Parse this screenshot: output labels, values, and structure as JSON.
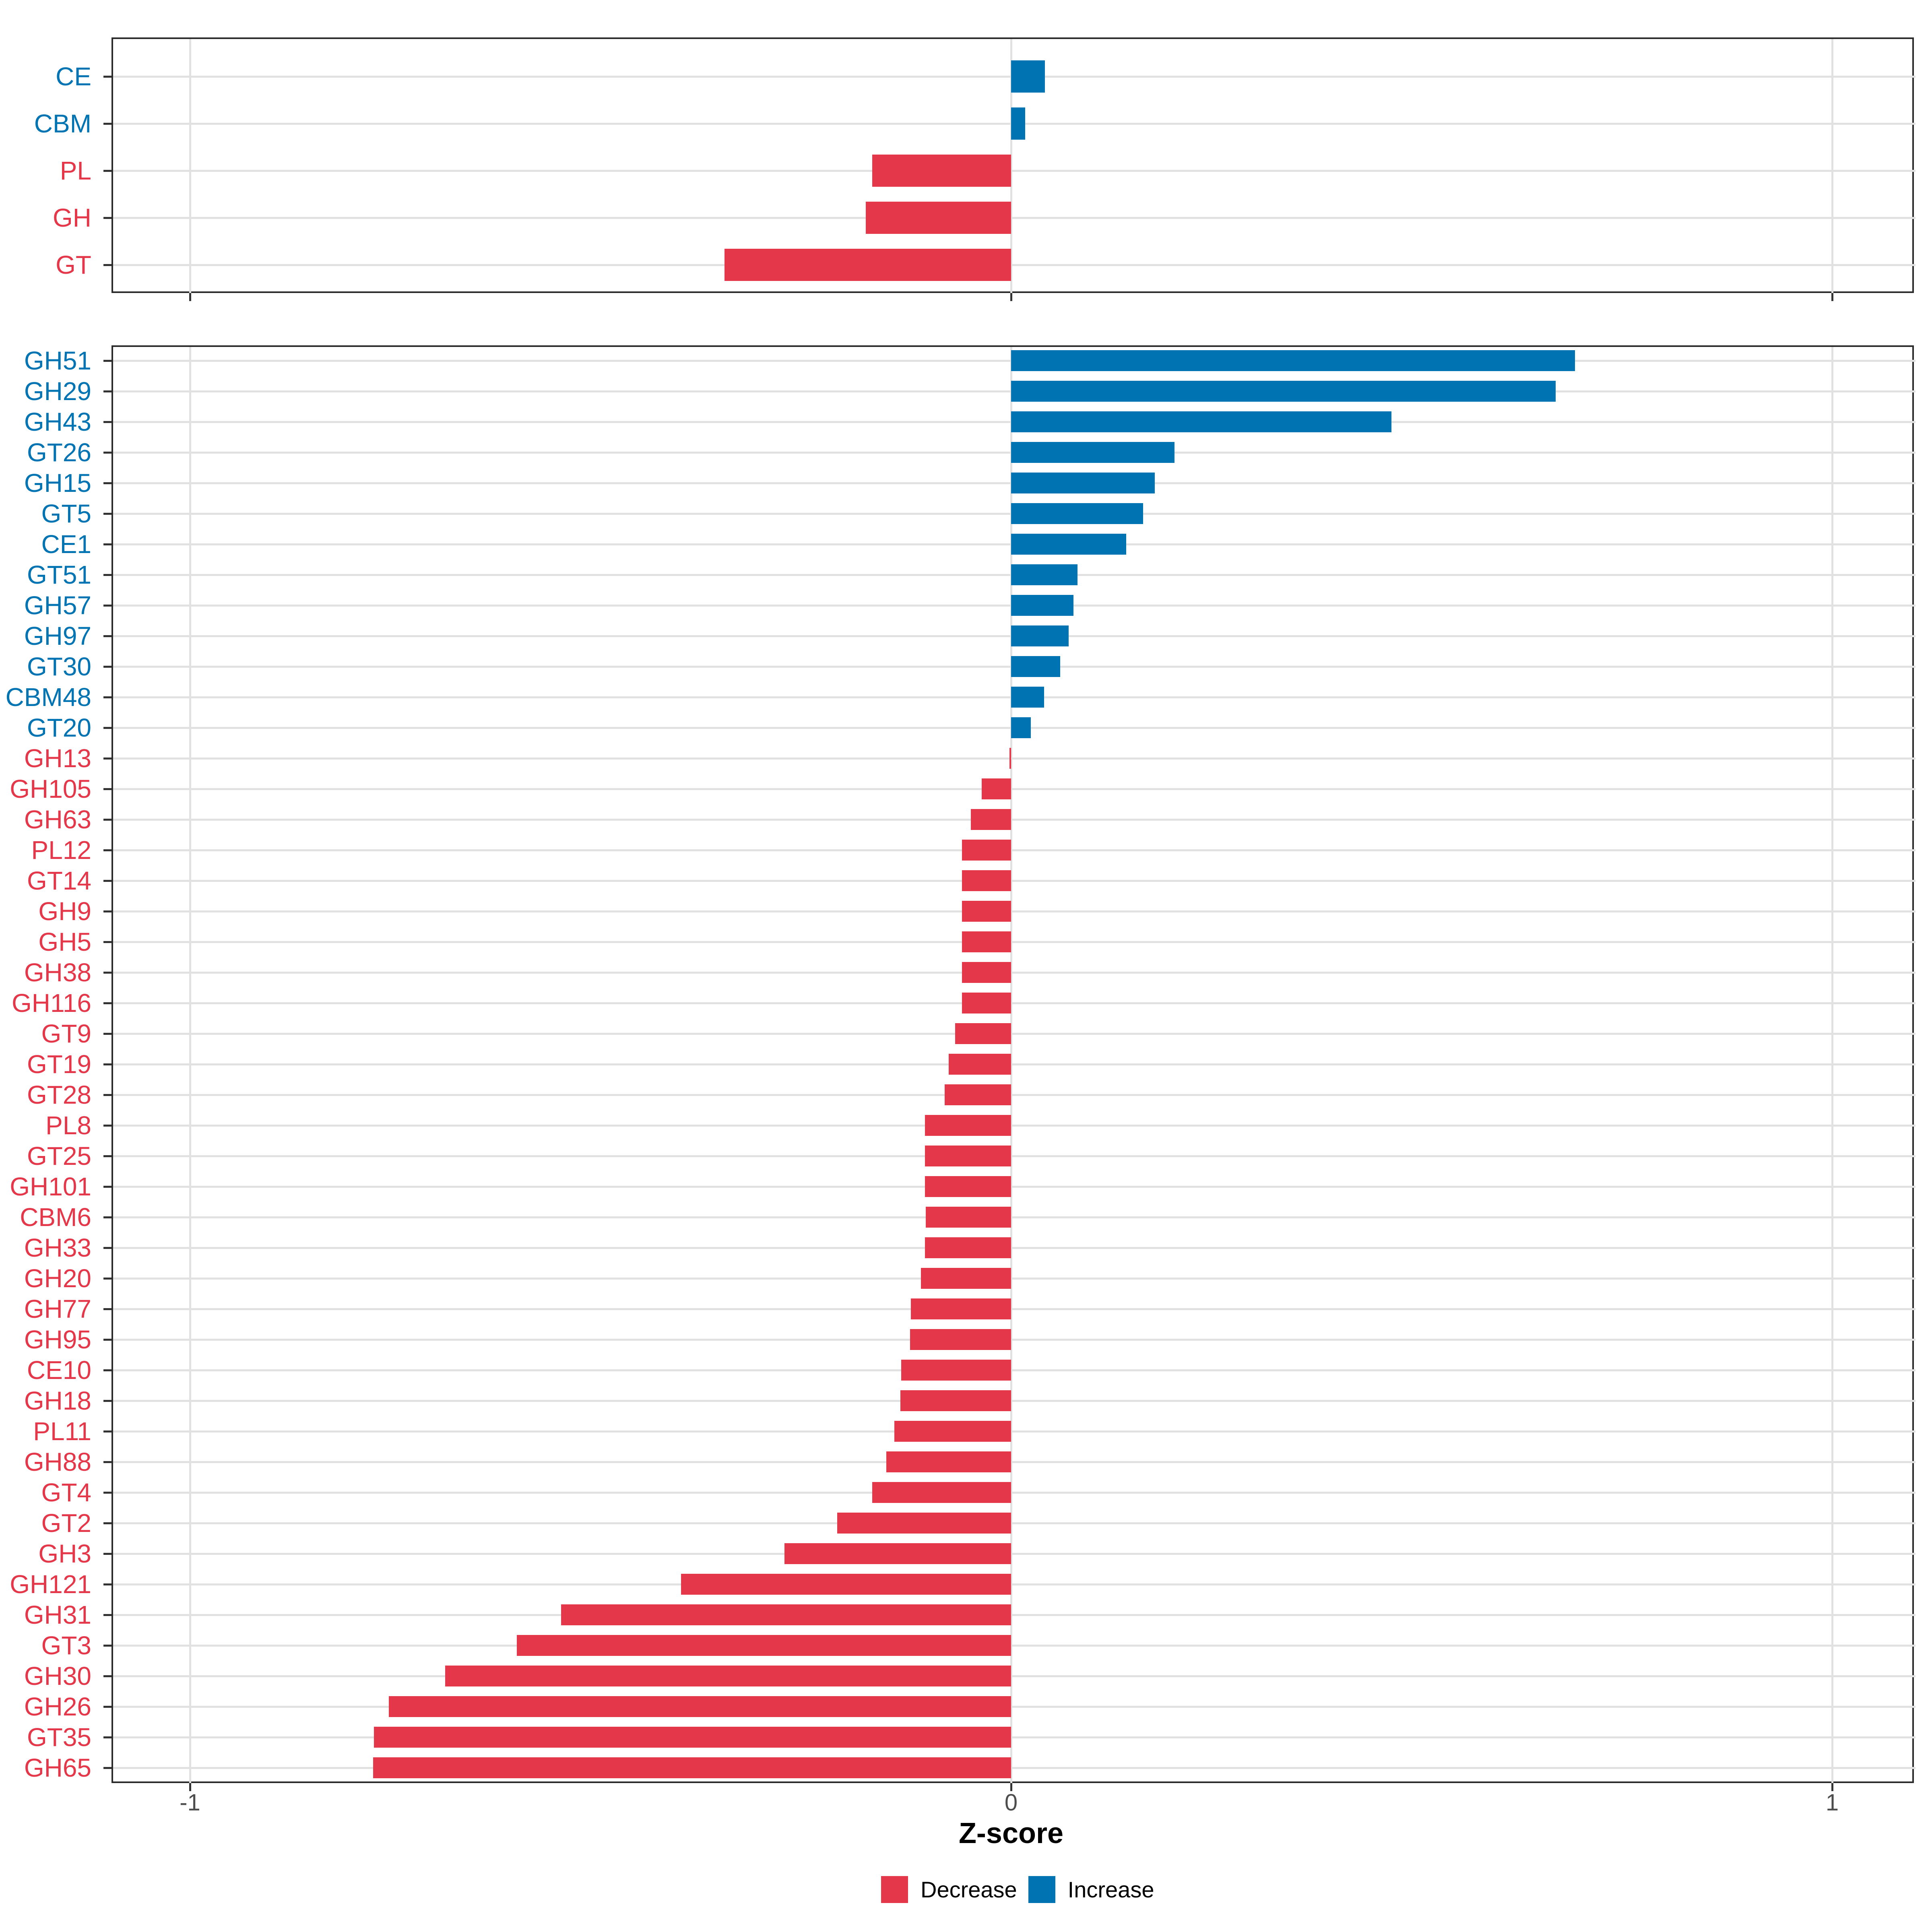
{
  "axis": {
    "title": "Z-score",
    "tick_values": [
      -1,
      0,
      1
    ],
    "tick_labels": [
      "-1",
      "0",
      "1"
    ]
  },
  "legend": {
    "items": [
      {
        "label": "Decrease",
        "color": "#e4384a",
        "direction": "Decrease"
      },
      {
        "label": "Increase",
        "color": "#0074b3",
        "direction": "Increase"
      }
    ]
  },
  "colors": {
    "increase": "#0074b3",
    "decrease": "#e4384a",
    "grid": "#e1e1e1",
    "panel_border": "#2b2b2b",
    "tick": "#333333",
    "tick_label": "#4d4d4d",
    "axis_title": "#000000"
  },
  "chart_data": [
    {
      "type": "bar",
      "orientation": "horizontal",
      "panel": "cazyme-class-summary",
      "xlabel": "Z-score",
      "xlim": [
        -1.1,
        1.1
      ],
      "grid": "on",
      "legend_position": "bottom",
      "categories": [
        "CE",
        "CBM",
        "PL",
        "GH",
        "GT"
      ],
      "values": [
        0.041,
        0.017,
        -0.169,
        -0.177,
        -0.349
      ],
      "directions": [
        "Increase",
        "Increase",
        "Decrease",
        "Decrease",
        "Decrease"
      ]
    },
    {
      "type": "bar",
      "orientation": "horizontal",
      "panel": "cazyme-family-detail",
      "xlabel": "Z-score",
      "xlim": [
        -1.1,
        1.1
      ],
      "grid": "on",
      "legend_position": "bottom",
      "categories": [
        "GH51",
        "GH29",
        "GH43",
        "GT26",
        "GH15",
        "GT5",
        "CE1",
        "GT51",
        "GH57",
        "GH97",
        "GT30",
        "CBM48",
        "GT20",
        "GH13",
        "GH105",
        "GH63",
        "PL12",
        "GT14",
        "GH9",
        "GH5",
        "GH38",
        "GH116",
        "GT9",
        "GT19",
        "GT28",
        "PL8",
        "GT25",
        "GH101",
        "CBM6",
        "GH33",
        "GH20",
        "GH77",
        "GH95",
        "CE10",
        "GH18",
        "PL11",
        "GH88",
        "GT4",
        "GT2",
        "GH3",
        "GH121",
        "GH31",
        "GT3",
        "GH30",
        "GH26",
        "GT35",
        "GH65"
      ],
      "values": [
        0.687,
        0.663,
        0.463,
        0.199,
        0.175,
        0.161,
        0.14,
        0.081,
        0.076,
        0.07,
        0.06,
        0.04,
        0.024,
        -0.002,
        -0.036,
        -0.049,
        -0.06,
        -0.06,
        -0.06,
        -0.06,
        -0.06,
        -0.06,
        -0.068,
        -0.076,
        -0.081,
        -0.105,
        -0.105,
        -0.105,
        -0.104,
        -0.105,
        -0.11,
        -0.122,
        -0.123,
        -0.134,
        -0.135,
        -0.142,
        -0.152,
        -0.169,
        -0.212,
        -0.276,
        -0.402,
        -0.548,
        -0.602,
        -0.689,
        -0.758,
        -0.776,
        -0.777
      ],
      "directions": [
        "Increase",
        "Increase",
        "Increase",
        "Increase",
        "Increase",
        "Increase",
        "Increase",
        "Increase",
        "Increase",
        "Increase",
        "Increase",
        "Increase",
        "Increase",
        "Decrease",
        "Decrease",
        "Decrease",
        "Decrease",
        "Decrease",
        "Decrease",
        "Decrease",
        "Decrease",
        "Decrease",
        "Decrease",
        "Decrease",
        "Decrease",
        "Decrease",
        "Decrease",
        "Decrease",
        "Decrease",
        "Decrease",
        "Decrease",
        "Decrease",
        "Decrease",
        "Decrease",
        "Decrease",
        "Decrease",
        "Decrease",
        "Decrease",
        "Decrease",
        "Decrease",
        "Decrease",
        "Decrease",
        "Decrease",
        "Decrease",
        "Decrease",
        "Decrease",
        "Decrease"
      ]
    }
  ]
}
